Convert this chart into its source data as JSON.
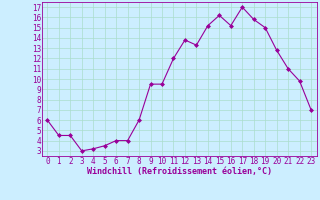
{
  "x": [
    0,
    1,
    2,
    3,
    4,
    5,
    6,
    7,
    8,
    9,
    10,
    11,
    12,
    13,
    14,
    15,
    16,
    17,
    18,
    19,
    20,
    21,
    22,
    23
  ],
  "y": [
    6,
    4.5,
    4.5,
    3,
    3.2,
    3.5,
    4,
    4,
    6,
    9.5,
    9.5,
    12,
    13.8,
    13.3,
    15.2,
    16.2,
    15.2,
    17,
    15.8,
    15,
    12.8,
    11,
    9.8,
    7
  ],
  "line_color": "#990099",
  "marker": "D",
  "markersize": 2,
  "linewidth": 0.8,
  "bg_color": "#cceeff",
  "grid_color": "#aaddcc",
  "xlabel": "Windchill (Refroidissement éolien,°C)",
  "xlabel_color": "#990099",
  "tick_color": "#990099",
  "ylim": [
    2.5,
    17.5
  ],
  "xlim": [
    -0.5,
    23.5
  ],
  "yticks": [
    3,
    4,
    5,
    6,
    7,
    8,
    9,
    10,
    11,
    12,
    13,
    14,
    15,
    16,
    17
  ],
  "xticks": [
    0,
    1,
    2,
    3,
    4,
    5,
    6,
    7,
    8,
    9,
    10,
    11,
    12,
    13,
    14,
    15,
    16,
    17,
    18,
    19,
    20,
    21,
    22,
    23
  ],
  "tick_fontsize": 5.5,
  "xlabel_fontsize": 6.0
}
